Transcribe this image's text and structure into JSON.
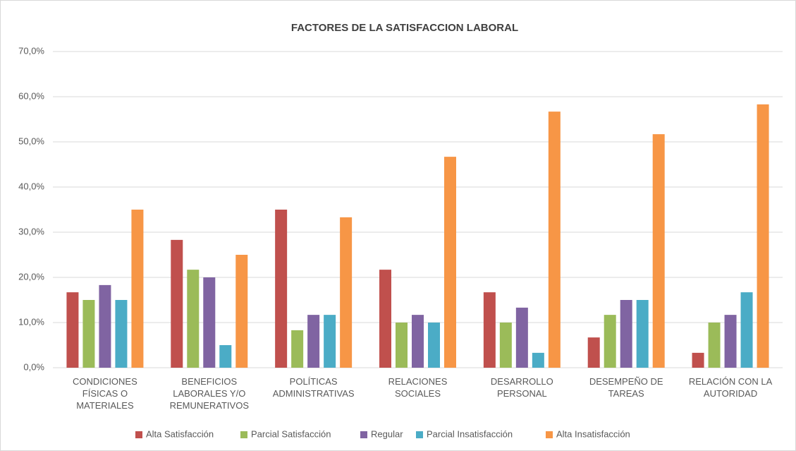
{
  "chart_data": {
    "type": "bar",
    "title": "FACTORES DE LA SATISFACCION LABORAL",
    "categories": [
      "CONDICIONES\nFÍSICAS O\nMATERIALES",
      "BENEFICIOS\nLABORALES Y/O\nREMUNERATIVOS",
      "POLÍTICAS\nADMINISTRATIVAS",
      "RELACIONES\nSOCIALES",
      "DESARROLLO\nPERSONAL",
      "DESEMPEÑO DE\nTAREAS",
      "RELACIÓN CON LA\nAUTORIDAD"
    ],
    "series": [
      {
        "name": "Alta Satisfacción",
        "color": "#c0504d",
        "values": [
          16.7,
          28.3,
          35,
          21.7,
          16.7,
          6.7,
          3.3
        ]
      },
      {
        "name": "Parcial Satisfacción",
        "color": "#9bbb59",
        "values": [
          15,
          21.7,
          8.3,
          10,
          10,
          11.7,
          10
        ]
      },
      {
        "name": "Regular",
        "color": "#8064a2",
        "values": [
          18.3,
          20,
          11.7,
          11.7,
          13.3,
          15,
          11.7
        ]
      },
      {
        "name": "Parcial Insatisfacción",
        "color": "#4bacc6",
        "values": [
          15,
          5,
          11.7,
          10,
          3.3,
          15,
          16.7
        ]
      },
      {
        "name": "Alta Insatisfacción",
        "color": "#f79646",
        "values": [
          35,
          25,
          33.3,
          46.7,
          56.7,
          51.7,
          58.3
        ]
      }
    ],
    "ylim": [
      0,
      70
    ],
    "yticks": [
      {
        "value": 0,
        "label": "0,0%"
      },
      {
        "value": 10,
        "label": "10,0%"
      },
      {
        "value": 20,
        "label": "20,0%"
      },
      {
        "value": 30,
        "label": "30,0%"
      },
      {
        "value": 40,
        "label": "40,0%"
      },
      {
        "value": 50,
        "label": "50,0%"
      },
      {
        "value": 60,
        "label": "60,0%"
      },
      {
        "value": 70,
        "label": "70,0%"
      }
    ],
    "grid": true,
    "legend": "bottom"
  }
}
